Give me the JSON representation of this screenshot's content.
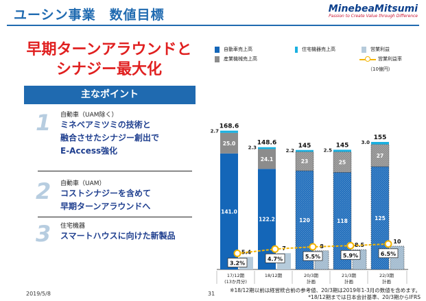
{
  "header": {
    "title": "ユーシン事業　数値目標",
    "logo_name": "MinebeaMitsumi",
    "logo_tagline": "Passion to Create Value through Difference"
  },
  "headline": {
    "line1": "早期ターンアラウンドと",
    "line2": "シナジー最大化"
  },
  "points": {
    "heading": "主なポイント",
    "items": [
      {
        "num": "1",
        "category": "自動車（UAM除く）",
        "lines": [
          "ミネベアミツミの技術と",
          "融合させたシナジー創出で",
          "E-Access強化"
        ]
      },
      {
        "num": "2",
        "category": "自動車（UAM）",
        "lines": [
          "コストシナジーを含めて",
          "早期ターンアラウンドへ"
        ]
      },
      {
        "num": "3",
        "category": "住宅機器",
        "lines": [
          "スマートハウスに向けた新製品"
        ]
      }
    ]
  },
  "footer": {
    "date": "2019/5/8",
    "page": "31",
    "note1": "※18/12期以前は経営統合前の参考値、20/3期は2019年1-3月の数値を含めます。",
    "note2": "*18/12期までは日本会計基準、20/3期からIFRS"
  },
  "legend": {
    "auto": "自動車売上高",
    "housing": "住宅機器売上高",
    "opincome": "営業利益",
    "industrial": "産業機械売上高",
    "margin": "営業利益率",
    "unit": "（10億円）"
  },
  "colors": {
    "auto": "#1466b8",
    "industrial": "#8c8c8c",
    "housing": "#1ab0e0",
    "opincome": "#b6cbdb",
    "margin": "#f4b400",
    "accent": "#1f6ab0"
  },
  "chart_data": {
    "type": "bar",
    "categories": [
      "17/12期\n(13か月分)",
      "18/12期",
      "20/3期\n計画",
      "21/3期\n計画",
      "22/3期\n計画"
    ],
    "series": [
      {
        "name": "自動車売上高",
        "values": [
          141.0,
          122.2,
          120,
          118,
          125
        ],
        "labels": [
          "141.0",
          "122.2",
          "120",
          "118",
          "125"
        ]
      },
      {
        "name": "産業機械売上高",
        "values": [
          25.0,
          24.1,
          23,
          25,
          27
        ],
        "labels": [
          "25.0",
          "24.1",
          "23",
          "25",
          "27"
        ]
      },
      {
        "name": "住宅機器売上高",
        "values": [
          2.7,
          2.3,
          2.2,
          2.5,
          3.0
        ],
        "labels": [
          "2.7",
          "2.3",
          "2.2",
          "2.5",
          "3.0"
        ]
      },
      {
        "name": "営業利益",
        "values": [
          5.4,
          7,
          8,
          8.5,
          10
        ],
        "labels": [
          "5.4",
          "7",
          "8",
          "8.5",
          "10"
        ]
      },
      {
        "name": "営業利益率",
        "values": [
          3.2,
          4.7,
          5.5,
          5.9,
          6.5
        ],
        "labels": [
          "3.2%",
          "4.7%",
          "5.5%",
          "5.9%",
          "6.5%"
        ]
      }
    ],
    "totals": [
      "168.6",
      "148.6",
      "145",
      "145",
      "155"
    ],
    "hatched_from_index": 2
  }
}
